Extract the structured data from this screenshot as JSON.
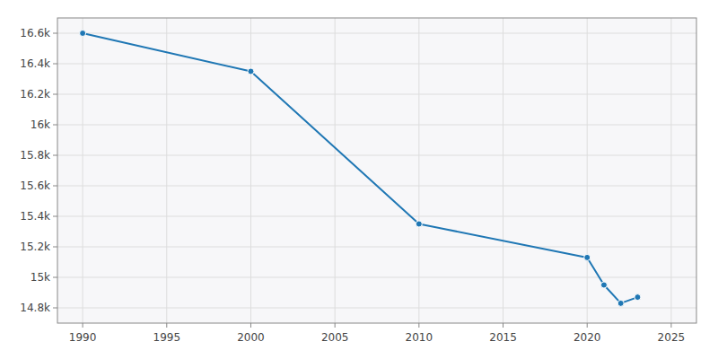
{
  "chart_data": {
    "type": "line",
    "x": [
      1990,
      2000,
      2010,
      2020,
      2021,
      2022,
      2023
    ],
    "values": [
      16600,
      16350,
      15350,
      15130,
      14950,
      14830,
      14870
    ],
    "xlim": [
      1988.5,
      2026.5
    ],
    "ylim": [
      14700,
      16700
    ],
    "xticks": [
      1990,
      1995,
      2000,
      2005,
      2010,
      2015,
      2020,
      2025
    ],
    "yticks": [
      {
        "value": 14800,
        "label": "14.8k"
      },
      {
        "value": 15000,
        "label": "15k"
      },
      {
        "value": 15200,
        "label": "15.2k"
      },
      {
        "value": 15400,
        "label": "15.4k"
      },
      {
        "value": 15600,
        "label": "15.6k"
      },
      {
        "value": 15800,
        "label": "15.8k"
      },
      {
        "value": 16000,
        "label": "16k"
      },
      {
        "value": 16200,
        "label": "16.2k"
      },
      {
        "value": 16400,
        "label": "16.4k"
      },
      {
        "value": 16600,
        "label": "16.6k"
      }
    ],
    "grid": true,
    "marker": "circle"
  }
}
